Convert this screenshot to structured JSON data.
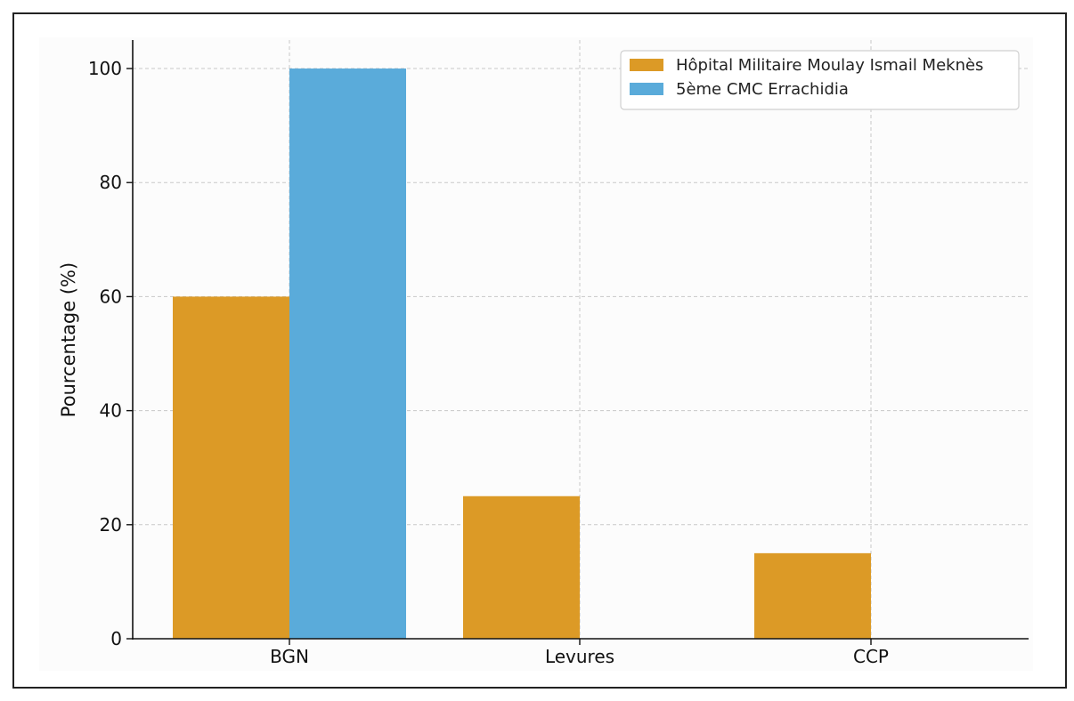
{
  "chart_data": {
    "type": "bar",
    "title": "",
    "xlabel": "",
    "ylabel": "Pourcentage (%)",
    "categories": [
      "BGN",
      "Levures",
      "CCP"
    ],
    "series": [
      {
        "name": "Hôpital Militaire Moulay Ismail Meknès",
        "values": [
          60,
          25,
          15
        ],
        "color": "#DC9A26"
      },
      {
        "name": "5ème CMC Errachidia",
        "values": [
          100,
          0,
          0
        ],
        "color": "#5AABDA"
      }
    ],
    "ylim": [
      0,
      105
    ],
    "yticks": [
      0,
      20,
      40,
      60,
      80,
      100
    ],
    "grid": true,
    "legend_position": "top-right"
  }
}
